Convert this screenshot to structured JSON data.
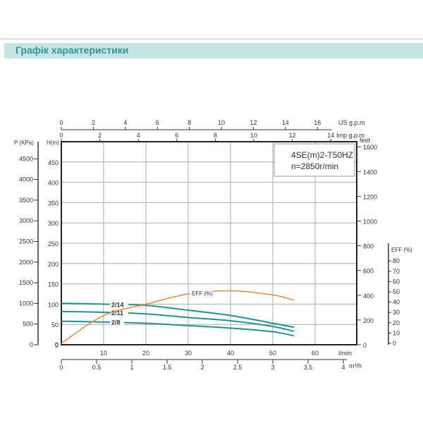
{
  "header": {
    "title": "Графік характеристики"
  },
  "chart_data": {
    "type": "line",
    "title": "4SE(m)2-T50HZ",
    "subtitle": "n=2850r/min",
    "xlabel": "l/min",
    "ylabel": "H(m)",
    "xlim": [
      0,
      70
    ],
    "ylim": [
      0,
      500
    ],
    "grid": true,
    "x_ticks": [
      10,
      20,
      30,
      40,
      50,
      60
    ],
    "y_ticks": [
      0,
      50,
      100,
      150,
      200,
      250,
      300,
      350,
      400,
      450
    ],
    "secondary_axes": {
      "pressure_kpa": {
        "label": "P (KPa)",
        "ticks": [
          0,
          500,
          1000,
          1500,
          2000,
          2500,
          3000,
          3500,
          4000,
          4500
        ]
      },
      "feet": {
        "label": "feet",
        "ticks": [
          0,
          200,
          400,
          600,
          800,
          1000,
          1200,
          1400,
          1600
        ]
      },
      "eff_percent": {
        "label": "EFF (%)",
        "ticks": [
          0,
          10,
          20,
          30,
          40,
          50,
          60,
          70,
          80
        ]
      },
      "us_gpm": {
        "label": "US g.p.m",
        "ticks": [
          0,
          2,
          4,
          6,
          8,
          10,
          12,
          14,
          16
        ]
      },
      "imp_gpm": {
        "label": "Imp g.p.m",
        "ticks": [
          0,
          2,
          4,
          6,
          8,
          10,
          12,
          14
        ]
      },
      "m3h": {
        "label": "m³/h",
        "ticks": [
          "0",
          "0.5",
          "1",
          "1.5",
          "2",
          "2.5",
          "3",
          "3.5",
          "4"
        ]
      }
    },
    "x": [
      0,
      10,
      20,
      30,
      40,
      50,
      55
    ],
    "series": [
      {
        "name": "2/14",
        "axis": "H(m)",
        "values": [
          102,
          100,
          97,
          85,
          72,
          53,
          43
        ]
      },
      {
        "name": "2/11",
        "axis": "H(m)",
        "values": [
          82,
          80,
          76,
          67,
          59,
          45,
          33
        ]
      },
      {
        "name": "2/8",
        "axis": "H(m)",
        "values": [
          58,
          56,
          53,
          47,
          41,
          32,
          22
        ]
      },
      {
        "name": "EFF (%)",
        "axis": "EFF (%)",
        "values": [
          0,
          27,
          38,
          48,
          51,
          47,
          42
        ]
      }
    ],
    "colors": {
      "head_curves": "#1f9590",
      "eff_curve": "#e8863a"
    }
  }
}
